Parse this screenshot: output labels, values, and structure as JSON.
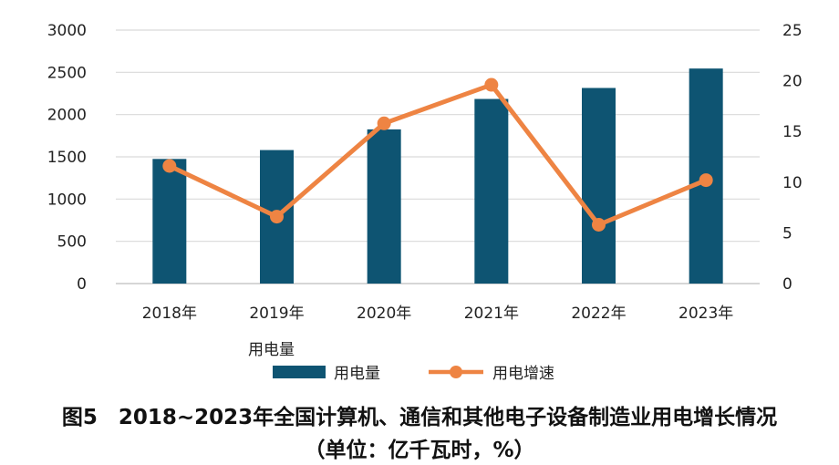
{
  "chart_data": {
    "type": "bar",
    "categories": [
      "2018年",
      "2019年",
      "2020年",
      "2021年",
      "2022年",
      "2023年"
    ],
    "series": [
      {
        "name": "用电量",
        "kind": "bar",
        "axis": "left",
        "color": "#0e5472",
        "values": [
          1475,
          1580,
          1825,
          2185,
          2315,
          2545
        ]
      },
      {
        "name": "用电增速",
        "kind": "line",
        "axis": "right",
        "color": "#ee8443",
        "values": [
          11.6,
          6.6,
          15.8,
          19.6,
          5.8,
          10.2
        ]
      }
    ],
    "y_left": {
      "ticks": [
        0,
        500,
        1000,
        1500,
        2000,
        2500,
        3000
      ],
      "lim": [
        0,
        3000
      ]
    },
    "y_right": {
      "ticks": [
        0,
        5,
        10,
        15,
        20,
        25
      ],
      "lim": [
        0,
        25
      ]
    },
    "grid": true,
    "legend": {
      "title": "用电量",
      "position": "bottom",
      "items": [
        {
          "label": "用电量",
          "kind": "bar"
        },
        {
          "label": "用电增速",
          "kind": "line"
        }
      ]
    }
  },
  "caption": {
    "line1": "图5　2018~2023年全国计算机、通信和其他电子设备制造业用电增长情况",
    "line2": "（单位：亿千瓦时，%）"
  }
}
